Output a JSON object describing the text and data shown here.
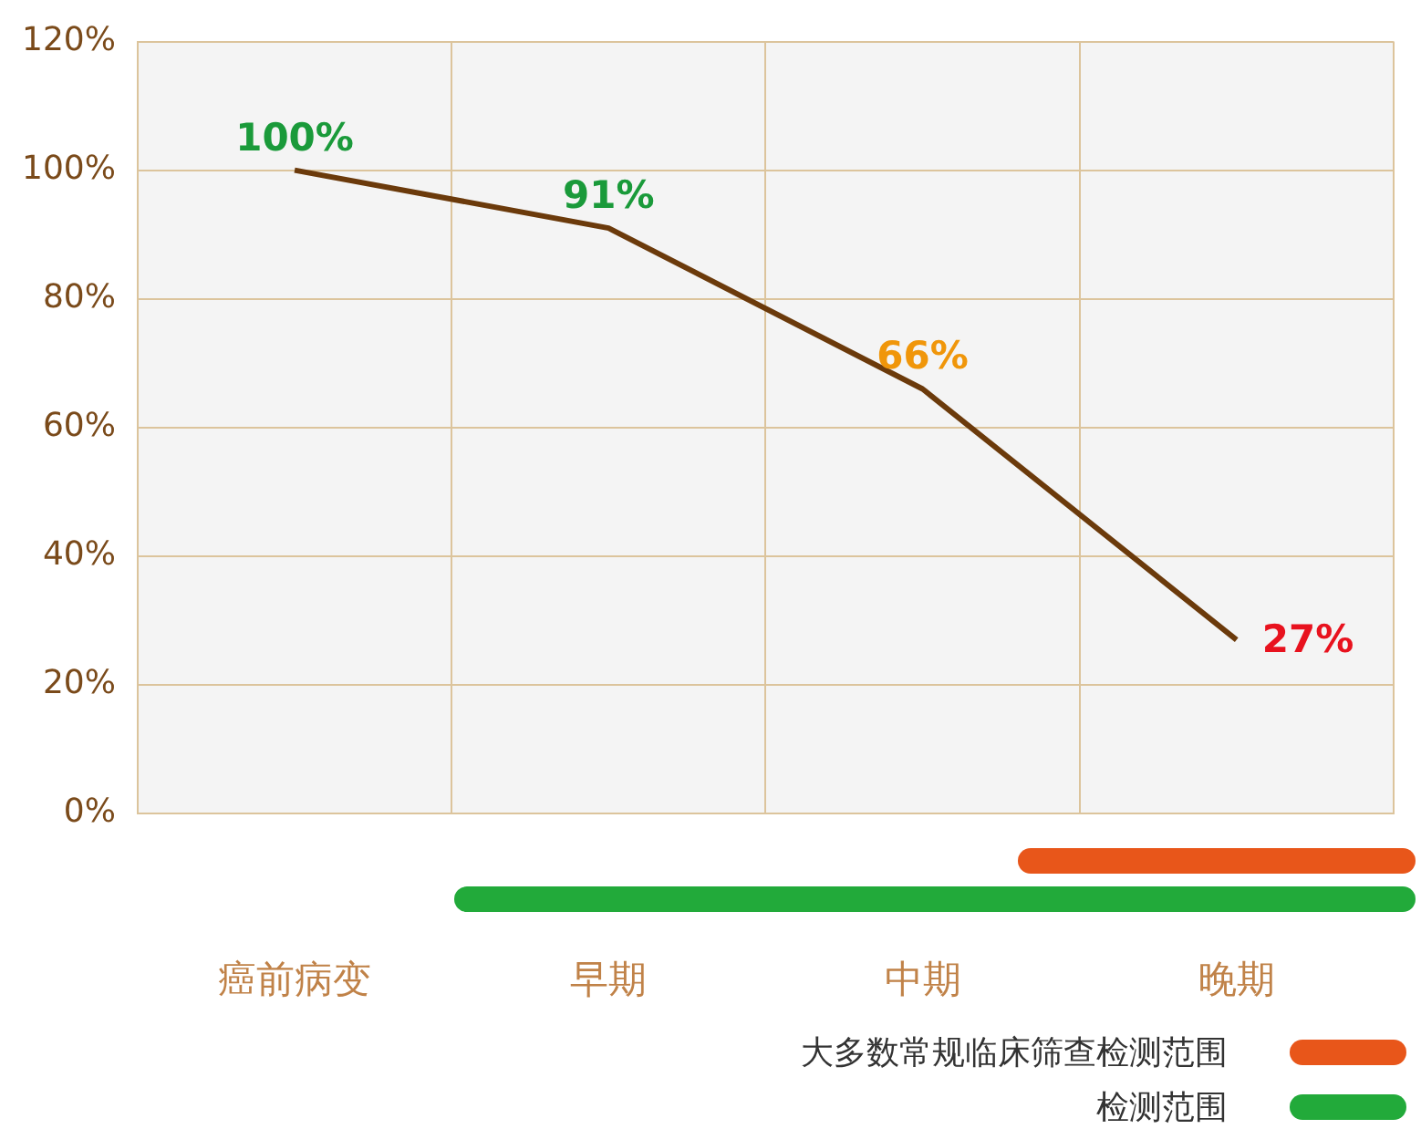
{
  "chart_data": {
    "type": "line",
    "categories": [
      "癌前病变",
      "早期",
      "中期",
      "晚期"
    ],
    "series": [
      {
        "color": "#6b3a0b",
        "values": [
          100,
          91,
          66,
          27
        ],
        "value_labels": [
          "100%",
          "91%",
          "66%",
          "27%"
        ],
        "colors": [
          "#1a9a3a",
          "#1a9a3a",
          "#f0960a",
          "#e8121e"
        ]
      }
    ],
    "marker": "none",
    "grid": true,
    "ylim": [
      0,
      120
    ],
    "yticks": [
      {
        "value": 0,
        "label": "0%"
      },
      {
        "value": 20,
        "label": "20%"
      },
      {
        "value": 40,
        "label": "40%"
      },
      {
        "value": 60,
        "label": "60%"
      },
      {
        "value": 80,
        "label": "80%"
      },
      {
        "value": 100,
        "label": "100%"
      },
      {
        "value": 120,
        "label": "120%"
      }
    ],
    "annotations": [
      "大多数常规临床筛查检测范围",
      "检测范围"
    ]
  }
}
